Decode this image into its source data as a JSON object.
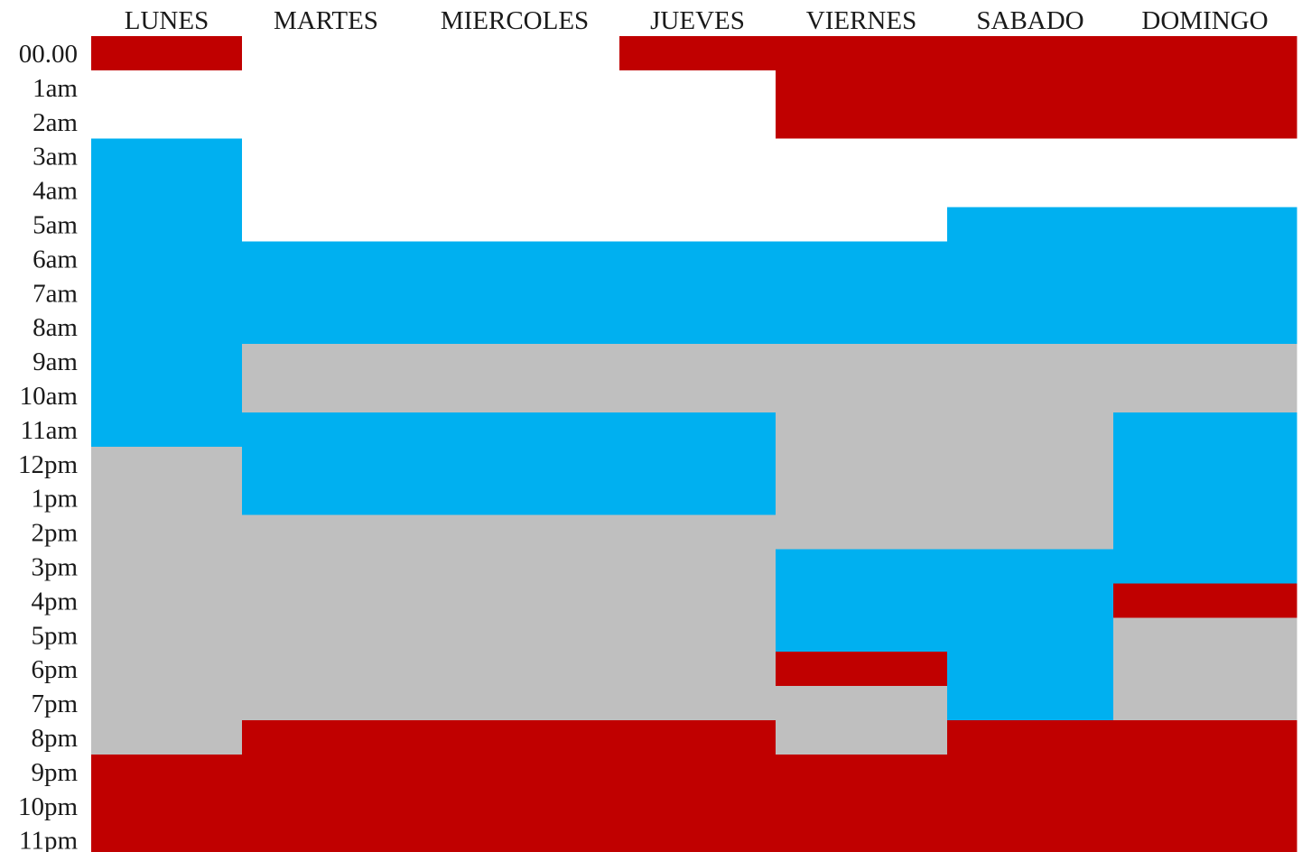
{
  "chart_data": {
    "type": "heatmap",
    "title": "",
    "xlabel": "",
    "ylabel": "",
    "columns": [
      "LUNES",
      "MARTES",
      "MIERCOLES",
      "JUEVES",
      "VIERNES",
      "SABADO",
      "DOMINGO"
    ],
    "rows": [
      "00.00",
      "1am",
      "2am",
      "3am",
      "4am",
      "5am",
      "6am",
      "7am",
      "8am",
      "9am",
      "10am",
      "11am",
      "12pm",
      "1pm",
      "2pm",
      "3pm",
      "4pm",
      "5pm",
      "6pm",
      "7pm",
      "8pm",
      "9pm",
      "10pm",
      "11pm"
    ],
    "colors": {
      "R": "#c00000",
      "B": "#00b0f0",
      "G": "#bfbfbf",
      "W": "#ffffff"
    },
    "cells": [
      [
        "R",
        "W",
        "W",
        "R",
        "R",
        "R",
        "R"
      ],
      [
        "W",
        "W",
        "W",
        "W",
        "R",
        "R",
        "R"
      ],
      [
        "W",
        "W",
        "W",
        "W",
        "R",
        "R",
        "R"
      ],
      [
        "B",
        "W",
        "W",
        "W",
        "W",
        "W",
        "W"
      ],
      [
        "B",
        "W",
        "W",
        "W",
        "W",
        "W",
        "W"
      ],
      [
        "B",
        "W",
        "W",
        "W",
        "W",
        "B",
        "B"
      ],
      [
        "B",
        "B",
        "B",
        "B",
        "B",
        "B",
        "B"
      ],
      [
        "B",
        "B",
        "B",
        "B",
        "B",
        "B",
        "B"
      ],
      [
        "B",
        "B",
        "B",
        "B",
        "B",
        "B",
        "B"
      ],
      [
        "B",
        "G",
        "G",
        "G",
        "G",
        "G",
        "G"
      ],
      [
        "B",
        "G",
        "G",
        "G",
        "G",
        "G",
        "G"
      ],
      [
        "B",
        "B",
        "B",
        "B",
        "G",
        "G",
        "B"
      ],
      [
        "G",
        "B",
        "B",
        "B",
        "G",
        "G",
        "B"
      ],
      [
        "G",
        "B",
        "B",
        "B",
        "G",
        "G",
        "B"
      ],
      [
        "G",
        "G",
        "G",
        "G",
        "G",
        "G",
        "B"
      ],
      [
        "G",
        "G",
        "G",
        "G",
        "B",
        "B",
        "B"
      ],
      [
        "G",
        "G",
        "G",
        "G",
        "B",
        "B",
        "R"
      ],
      [
        "G",
        "G",
        "G",
        "G",
        "B",
        "B",
        "G"
      ],
      [
        "G",
        "G",
        "G",
        "G",
        "R",
        "B",
        "G"
      ],
      [
        "G",
        "G",
        "G",
        "G",
        "G",
        "B",
        "G"
      ],
      [
        "G",
        "R",
        "R",
        "R",
        "G",
        "R",
        "R"
      ],
      [
        "R",
        "R",
        "R",
        "R",
        "R",
        "R",
        "R"
      ],
      [
        "R",
        "R",
        "R",
        "R",
        "R",
        "R",
        "R"
      ],
      [
        "R",
        "R",
        "R",
        "R",
        "R",
        "R",
        "R"
      ]
    ],
    "grid": false,
    "legend": "none"
  }
}
